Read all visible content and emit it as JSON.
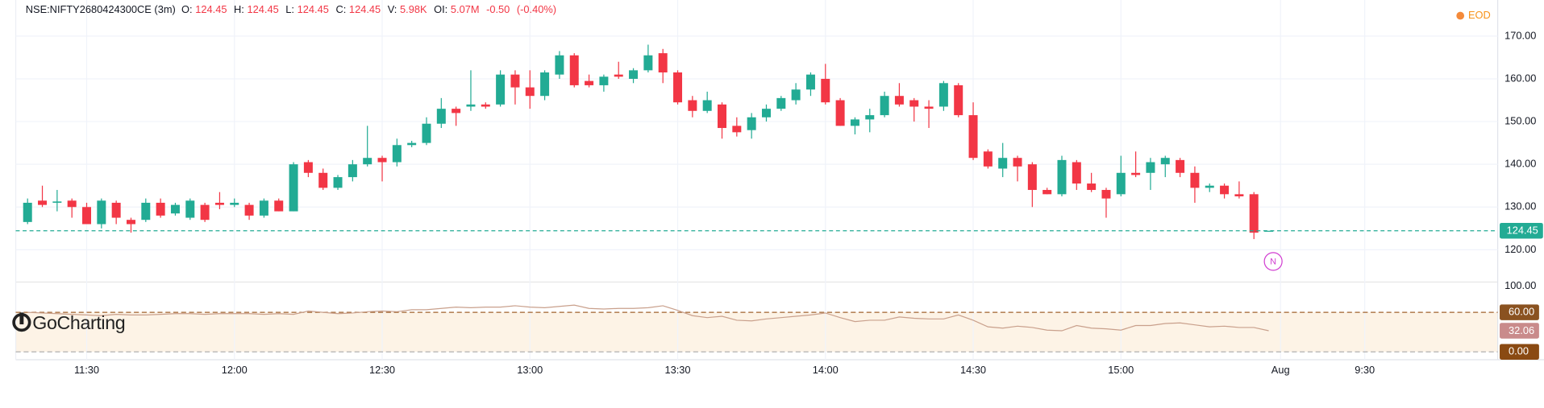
{
  "header": {
    "symbol": "NSE:NIFTY2680424300CE (3m)",
    "fields": [
      {
        "label": "O:",
        "value": "124.45"
      },
      {
        "label": "H:",
        "value": "124.45"
      },
      {
        "label": "L:",
        "value": "124.45"
      },
      {
        "label": "C:",
        "value": "124.45"
      },
      {
        "label": "V:",
        "value": "5.98K"
      },
      {
        "label": "OI:",
        "value": "5.07M"
      }
    ],
    "change": "-0.50",
    "change_pct": "(-0.40%)"
  },
  "eod_label": "EOD",
  "watermark": "GoCharting",
  "marker_label": "N",
  "chart_data": [
    {
      "type": "candlestick",
      "up_color": "#22ab94",
      "down_color": "#f23645",
      "grid": true,
      "open": [
        126.5,
        131.5,
        131,
        131.5,
        130,
        126,
        131,
        127,
        127,
        131,
        128.5,
        127.5,
        130.5,
        131,
        130.5,
        130.5,
        128,
        131.5,
        129,
        140.5,
        138,
        134.5,
        137,
        140,
        141.5,
        140.5,
        144.5,
        145,
        149.5,
        153,
        153.5,
        154,
        154,
        161,
        158,
        156,
        161,
        165.5,
        159.5,
        158.5,
        161,
        160,
        162,
        166,
        161.5,
        155,
        152.5,
        154,
        149,
        148,
        151,
        153,
        155,
        157.5,
        160,
        155,
        149,
        150.5,
        151.5,
        156,
        155,
        153.5,
        153.5,
        158.5,
        151.5,
        143,
        139,
        141.5,
        140,
        134,
        133,
        140.5,
        135.5,
        134,
        133,
        138,
        138,
        140,
        141,
        138,
        134.5,
        135,
        133,
        133,
        124.45
      ],
      "high": [
        132,
        135,
        134,
        132,
        131,
        132,
        131.5,
        127.5,
        132,
        132,
        131,
        132,
        131,
        133.5,
        132,
        131,
        132,
        132,
        140.5,
        141,
        139,
        137.5,
        141,
        149,
        142,
        146,
        145.5,
        151,
        155.5,
        153.5,
        162,
        154.5,
        162,
        162,
        162,
        162,
        166.5,
        166,
        161,
        161,
        164,
        162.5,
        168,
        167,
        162,
        156,
        157,
        154.5,
        151,
        152,
        154,
        156,
        159,
        161.5,
        163.5,
        155.5,
        151,
        153,
        157,
        159,
        155.5,
        155,
        159.5,
        159,
        154.5,
        143.5,
        145,
        142,
        140.5,
        134.5,
        142,
        141,
        138,
        134.5,
        142,
        143,
        141.5,
        142,
        141.5,
        139.5,
        135.5,
        135.5,
        136,
        133.5,
        124.45
      ],
      "low": [
        126,
        130,
        129,
        127.5,
        126,
        125,
        126,
        124,
        126.5,
        127.5,
        128,
        127,
        126.5,
        129.5,
        130,
        127,
        127.5,
        129,
        129,
        137,
        134,
        134,
        136,
        139.5,
        136,
        139.5,
        144,
        144.5,
        148.5,
        149,
        152.5,
        153,
        153.5,
        154,
        153,
        155,
        160,
        158,
        158,
        157,
        160,
        159,
        161.5,
        159,
        154,
        151,
        152,
        146,
        146.5,
        146,
        150,
        152.5,
        154,
        156,
        154,
        149,
        147,
        147.5,
        151,
        153.5,
        150,
        148.5,
        152.5,
        151,
        141,
        139,
        137,
        136,
        130,
        133,
        132.5,
        134,
        133.5,
        127.5,
        132.5,
        137,
        134,
        137,
        137,
        131,
        133.5,
        132,
        132,
        122.5,
        124.45
      ],
      "close": [
        131,
        130.5,
        131.3,
        130,
        126,
        131.5,
        127.5,
        126,
        131,
        128,
        130.5,
        131.5,
        127,
        130.5,
        131,
        128,
        131.5,
        129,
        140,
        138,
        134.5,
        137,
        140,
        141.5,
        140.5,
        144.5,
        145,
        149.5,
        153,
        152,
        154,
        153.5,
        161,
        158,
        156,
        161.5,
        165.5,
        158.5,
        158.5,
        160.5,
        160.5,
        162,
        165.5,
        161.5,
        154.5,
        152.5,
        155,
        148.5,
        147.5,
        151,
        153,
        155.5,
        157.5,
        161,
        154.5,
        149,
        150.5,
        151.5,
        156,
        154,
        153.5,
        153,
        159,
        151.5,
        141.5,
        139.5,
        141.5,
        139.5,
        134,
        133,
        141,
        135.5,
        134,
        132,
        138,
        137.5,
        140.5,
        141.5,
        138,
        134.5,
        135,
        133,
        132.5,
        124,
        124.45
      ],
      "last_price": 124.45,
      "last_color": "#22ab94",
      "xlim": [
        -0.8,
        99.5
      ],
      "xticks": [
        {
          "value": 4,
          "label": "11:30"
        },
        {
          "value": 14,
          "label": "12:00"
        },
        {
          "value": 24,
          "label": "12:30"
        },
        {
          "value": 34,
          "label": "13:00"
        },
        {
          "value": 44,
          "label": "13:30"
        },
        {
          "value": 54,
          "label": "14:00"
        },
        {
          "value": 64,
          "label": "14:30"
        },
        {
          "value": 74,
          "label": "15:00"
        },
        {
          "value": 84.8,
          "label": "Aug"
        },
        {
          "value": 90.5,
          "label": "9:30"
        }
      ],
      "ylim": [
        112.9,
        177.3
      ],
      "yticks": [
        {
          "value": 120,
          "label": "120.00"
        },
        {
          "value": 130,
          "label": "130.00"
        },
        {
          "value": 140,
          "label": "140.00"
        },
        {
          "value": 150,
          "label": "150.00"
        },
        {
          "value": 160,
          "label": "160.00"
        },
        {
          "value": 170,
          "label": "170.00"
        }
      ]
    },
    {
      "type": "line",
      "color": "#c9a08c",
      "values": [
        60,
        59,
        58,
        57,
        56,
        55,
        57,
        56,
        56,
        57,
        58,
        58,
        57,
        58,
        58,
        58,
        57,
        58,
        57,
        62,
        60,
        58,
        59,
        61,
        62,
        61,
        64,
        64,
        66,
        68,
        67,
        68,
        68,
        70,
        68,
        67,
        69,
        71,
        66,
        65,
        66,
        66,
        67,
        70,
        63,
        55,
        52,
        54,
        48,
        47,
        50,
        52,
        54,
        56,
        59,
        52,
        46,
        48,
        48,
        53,
        51,
        50,
        50,
        56,
        48,
        38,
        36,
        39,
        37,
        33,
        32,
        40,
        36,
        35,
        33,
        40,
        40,
        43,
        44,
        41,
        38,
        39,
        37,
        37,
        32.06
      ],
      "last_value": 32.06,
      "levels": [
        60,
        0
      ],
      "level_colors": [
        "#a0622d",
        "#b0b0b0"
      ],
      "ylim": [
        0,
        100
      ],
      "yticks": [
        {
          "value": 100,
          "label": "100.00"
        },
        {
          "value": 60,
          "label": "60.00"
        },
        {
          "value": 0,
          "label": "0.00"
        }
      ]
    }
  ]
}
